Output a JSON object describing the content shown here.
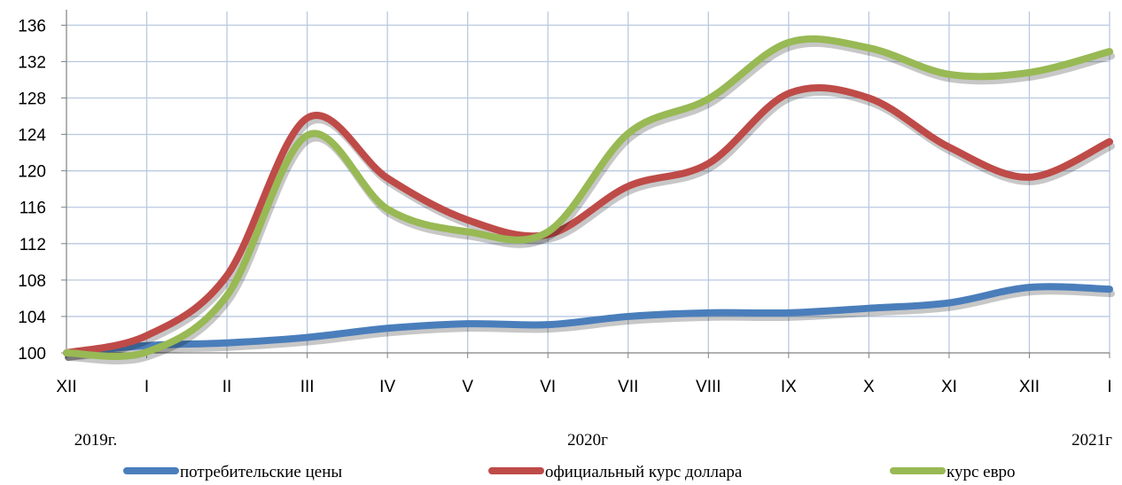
{
  "chart_data": {
    "type": "line",
    "categories": [
      "XII",
      "I",
      "II",
      "III",
      "IV",
      "V",
      "VI",
      "VII",
      "VIII",
      "IX",
      "X",
      "XI",
      "XII",
      "I"
    ],
    "year_labels": [
      "2019г.",
      "2020г",
      "2021г"
    ],
    "y_ticks": [
      100,
      104,
      108,
      112,
      116,
      120,
      124,
      128,
      132,
      136
    ],
    "ylim": [
      100,
      137.5
    ],
    "grid": true,
    "legend_position": "bottom",
    "series": [
      {
        "name": "потребительские цены",
        "color": "#4a7ebb",
        "values": [
          100,
          100.8,
          101.1,
          101.7,
          102.7,
          103.2,
          103.1,
          104.0,
          104.4,
          104.4,
          104.9,
          105.5,
          107.2,
          107.0
        ]
      },
      {
        "name": "официальный курс доллара",
        "color": "#be4b48",
        "values": [
          100,
          101.9,
          108.5,
          125.8,
          119.2,
          114.6,
          113.0,
          118.3,
          120.8,
          128.5,
          128.0,
          122.6,
          119.3,
          123.2
        ]
      },
      {
        "name": "курс евро",
        "color": "#98b954",
        "values": [
          100,
          100.1,
          106.3,
          123.9,
          115.8,
          113.3,
          113.3,
          124.1,
          127.9,
          134.1,
          133.5,
          130.6,
          130.8,
          133.1
        ]
      }
    ]
  }
}
